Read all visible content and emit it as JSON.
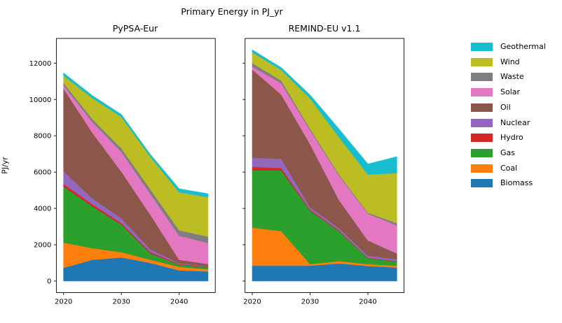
{
  "figure": {
    "title": "Primary Energy in PJ_yr",
    "ylabel": "PJ/yr"
  },
  "legend": {
    "entries": [
      {
        "label": "Geothermal",
        "color": "#17becf"
      },
      {
        "label": "Wind",
        "color": "#bcbd22"
      },
      {
        "label": "Waste",
        "color": "#7f7f7f"
      },
      {
        "label": "Solar",
        "color": "#e377c2"
      },
      {
        "label": "Oil",
        "color": "#8c564b"
      },
      {
        "label": "Nuclear",
        "color": "#9467bd"
      },
      {
        "label": "Hydro",
        "color": "#d62728"
      },
      {
        "label": "Gas",
        "color": "#2ca02c"
      },
      {
        "label": "Coal",
        "color": "#ff7f0e"
      },
      {
        "label": "Biomass",
        "color": "#1f77b4"
      }
    ]
  },
  "chart_data": [
    {
      "type": "area",
      "title": "PyPSA-Eur",
      "stacked": true,
      "x": [
        2020,
        2025,
        2030,
        2035,
        2040,
        2045
      ],
      "xticks": [
        2020,
        2030,
        2040
      ],
      "yticks": [
        0,
        2000,
        4000,
        6000,
        8000,
        10000,
        12000
      ],
      "ylim": [
        -650,
        13350
      ],
      "xlabel": "",
      "ylabel": "PJ/yr",
      "grid": false,
      "series": [
        {
          "name": "Biomass",
          "color": "#1f77b4",
          "values": [
            730,
            1170,
            1300,
            1000,
            590,
            530
          ]
        },
        {
          "name": "Coal",
          "color": "#ff7f0e",
          "values": [
            1390,
            640,
            290,
            180,
            190,
            130
          ]
        },
        {
          "name": "Gas",
          "color": "#2ca02c",
          "values": [
            3080,
            2300,
            1520,
            350,
            130,
            90
          ]
        },
        {
          "name": "Hydro",
          "color": "#d62728",
          "values": [
            150,
            120,
            90,
            70,
            30,
            30
          ]
        },
        {
          "name": "Nuclear",
          "color": "#9467bd",
          "values": [
            700,
            330,
            260,
            160,
            50,
            30
          ]
        },
        {
          "name": "Oil",
          "color": "#8c564b",
          "values": [
            4550,
            3600,
            2570,
            1900,
            180,
            130
          ]
        },
        {
          "name": "Solar",
          "color": "#e377c2",
          "values": [
            180,
            600,
            1090,
            1150,
            1330,
            1160
          ]
        },
        {
          "name": "Waste",
          "color": "#7f7f7f",
          "values": [
            130,
            160,
            190,
            250,
            300,
            350
          ]
        },
        {
          "name": "Wind",
          "color": "#bcbd22",
          "values": [
            400,
            1150,
            1730,
            1790,
            2090,
            2170
          ]
        },
        {
          "name": "Geothermal",
          "color": "#17becf",
          "values": [
            150,
            140,
            130,
            130,
            190,
            190
          ]
        }
      ]
    },
    {
      "type": "area",
      "title": "REMIND-EU v1.1",
      "stacked": true,
      "x": [
        2020,
        2025,
        2030,
        2035,
        2040,
        2045
      ],
      "xticks": [
        2020,
        2030,
        2040
      ],
      "yticks": [
        0,
        2000,
        4000,
        6000,
        8000,
        10000,
        12000
      ],
      "ylim": [
        -650,
        13350
      ],
      "xlabel": "",
      "ylabel": "",
      "grid": false,
      "series": [
        {
          "name": "Biomass",
          "color": "#1f77b4",
          "values": [
            850,
            850,
            850,
            970,
            830,
            745
          ]
        },
        {
          "name": "Coal",
          "color": "#ff7f0e",
          "values": [
            2100,
            1900,
            80,
            130,
            100,
            100
          ]
        },
        {
          "name": "Gas",
          "color": "#2ca02c",
          "values": [
            3150,
            3350,
            2950,
            1650,
            320,
            230
          ]
        },
        {
          "name": "Hydro",
          "color": "#d62728",
          "values": [
            190,
            130,
            60,
            40,
            30,
            30
          ]
        },
        {
          "name": "Nuclear",
          "color": "#9467bd",
          "values": [
            510,
            515,
            130,
            130,
            120,
            90
          ]
        },
        {
          "name": "Oil",
          "color": "#8c564b",
          "values": [
            4850,
            3530,
            3470,
            1540,
            835,
            325
          ]
        },
        {
          "name": "Solar",
          "color": "#e377c2",
          "values": [
            160,
            620,
            770,
            1350,
            1480,
            1540
          ]
        },
        {
          "name": "Waste",
          "color": "#7f7f7f",
          "values": [
            190,
            150,
            80,
            60,
            50,
            130
          ]
        },
        {
          "name": "Wind",
          "color": "#bcbd22",
          "values": [
            600,
            580,
            1670,
            2050,
            2100,
            2760
          ]
        },
        {
          "name": "Geothermal",
          "color": "#17becf",
          "values": [
            130,
            130,
            190,
            450,
            580,
            900
          ]
        }
      ]
    }
  ]
}
